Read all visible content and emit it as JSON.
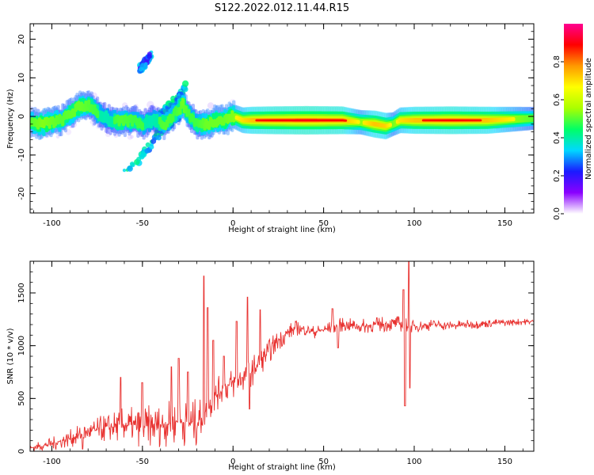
{
  "figure": {
    "title": "S122.2022.012.11.44.R15"
  },
  "chart_data": [
    {
      "type": "heatmap",
      "xlabel": "Height of straight line (km)",
      "ylabel": "Frequency (Hz)",
      "xlim": [
        -112,
        166
      ],
      "ylim": [
        -25,
        24
      ],
      "xticks": [
        -100,
        -50,
        0,
        50,
        100,
        150
      ],
      "yticks": [
        -20,
        -10,
        0,
        10,
        20
      ],
      "ridge": {
        "x": [
          -112,
          -105,
          -95,
          -85,
          -80,
          -75,
          -70,
          -62,
          -55,
          -50,
          -45,
          -38,
          -32,
          -28,
          -24,
          -20,
          -15,
          -10,
          -5,
          0,
          5,
          10,
          20,
          40,
          60,
          70,
          78,
          84,
          88,
          92,
          100,
          120,
          140,
          166
        ],
        "y": [
          -1.5,
          -2,
          -1,
          2.5,
          3,
          1,
          -0.5,
          -1.5,
          -1,
          -2,
          -1,
          -2,
          1,
          3,
          0,
          -2,
          -2,
          -1,
          -1,
          0,
          -1,
          -1,
          -1,
          -1,
          -1,
          -1.5,
          -2,
          -2.5,
          -2,
          -1,
          -1,
          -1,
          -1,
          -0.5
        ],
        "amplitude": [
          0.5,
          0.6,
          0.5,
          0.55,
          0.5,
          0.45,
          0.4,
          0.5,
          0.45,
          0.45,
          0.4,
          0.5,
          0.45,
          0.55,
          0.45,
          0.45,
          0.55,
          0.55,
          0.55,
          0.6,
          0.7,
          0.8,
          0.85,
          0.9,
          0.85,
          0.6,
          0.8,
          0.75,
          0.55,
          0.7,
          0.8,
          0.85,
          0.8,
          0.5
        ]
      },
      "branches": [
        {
          "x": [
            -60,
            -55,
            -50,
            -45,
            -40,
            -35,
            -30
          ],
          "y": [
            -14,
            -13,
            -10,
            -7,
            -4,
            -2,
            0
          ],
          "amplitude": 0.25
        },
        {
          "x": [
            -40,
            -35,
            -30,
            -26
          ],
          "y": [
            0,
            3,
            5,
            8
          ],
          "amplitude": 0.25
        },
        {
          "x": [
            -52,
            -48,
            -45
          ],
          "y": [
            12,
            14,
            16
          ],
          "amplitude": 0.15
        }
      ]
    },
    {
      "type": "colorbar",
      "label": "Normalized spectral amplitude",
      "range": [
        0,
        1
      ],
      "ticks": [
        0.0,
        0.2,
        0.4,
        0.6,
        0.8
      ],
      "colormap": [
        "#ffffff",
        "#8a00ff",
        "#1a1aff",
        "#00d8ff",
        "#00ff66",
        "#aaff00",
        "#ffff00",
        "#ff9900",
        "#ff0000",
        "#ff0090"
      ]
    },
    {
      "type": "line",
      "xlabel": "Height of straight line (km)",
      "ylabel": "SNR (10 * v/v)",
      "xlim": [
        -112,
        166
      ],
      "ylim": [
        0,
        1800
      ],
      "xticks": [
        -100,
        -50,
        0,
        50,
        100,
        150
      ],
      "yticks": [
        0,
        500,
        1000,
        1500
      ],
      "color": "#e8312f",
      "trend": {
        "x": [
          -112,
          -100,
          -90,
          -80,
          -70,
          -60,
          -50,
          -40,
          -30,
          -20,
          -15,
          -10,
          -5,
          0,
          5,
          10,
          15,
          20,
          25,
          30,
          35,
          40,
          45,
          50,
          60,
          70,
          80,
          90,
          95,
          100,
          110,
          120,
          130,
          140,
          150,
          166
        ],
        "y": [
          30,
          70,
          120,
          180,
          220,
          250,
          230,
          250,
          280,
          260,
          380,
          520,
          600,
          640,
          700,
          750,
          850,
          950,
          1050,
          1120,
          1170,
          1150,
          1130,
          1150,
          1200,
          1180,
          1200,
          1210,
          1200,
          1180,
          1200,
          1190,
          1200,
          1210,
          1220,
          1230
        ]
      },
      "noise": {
        "x": [
          -112,
          -80,
          -50,
          -20,
          -15,
          0,
          20,
          40,
          90,
          100,
          166
        ],
        "amplitude": [
          35,
          110,
          200,
          240,
          150,
          170,
          120,
          60,
          80,
          60,
          30
        ]
      },
      "spikes": [
        {
          "x": -83,
          "y": 20,
          "w": 0.4
        },
        {
          "x": -62,
          "y": 700,
          "w": 0.4
        },
        {
          "x": -50,
          "y": 650,
          "w": 0.4
        },
        {
          "x": -34,
          "y": 800,
          "w": 0.4
        },
        {
          "x": -30,
          "y": 880,
          "w": 0.4
        },
        {
          "x": -25,
          "y": 750,
          "w": 0.4
        },
        {
          "x": -16,
          "y": 1660,
          "w": 0.3
        },
        {
          "x": -14,
          "y": 1360,
          "w": 0.3
        },
        {
          "x": -11,
          "y": 1050,
          "w": 0.4
        },
        {
          "x": -5,
          "y": 900,
          "w": 0.5
        },
        {
          "x": 2,
          "y": 1230,
          "w": 0.4
        },
        {
          "x": 8,
          "y": 1460,
          "w": 0.3
        },
        {
          "x": 9,
          "y": 400,
          "w": 0.3
        },
        {
          "x": 15,
          "y": 1340,
          "w": 0.3
        },
        {
          "x": 55,
          "y": 1350,
          "w": 0.4
        },
        {
          "x": 58,
          "y": 980,
          "w": 0.4
        },
        {
          "x": 94,
          "y": 1530,
          "w": 0.4
        },
        {
          "x": 95,
          "y": 430,
          "w": 0.4
        },
        {
          "x": 97,
          "y": 1800,
          "w": 0.3
        },
        {
          "x": 97.7,
          "y": 600,
          "w": 0.3
        }
      ]
    }
  ]
}
